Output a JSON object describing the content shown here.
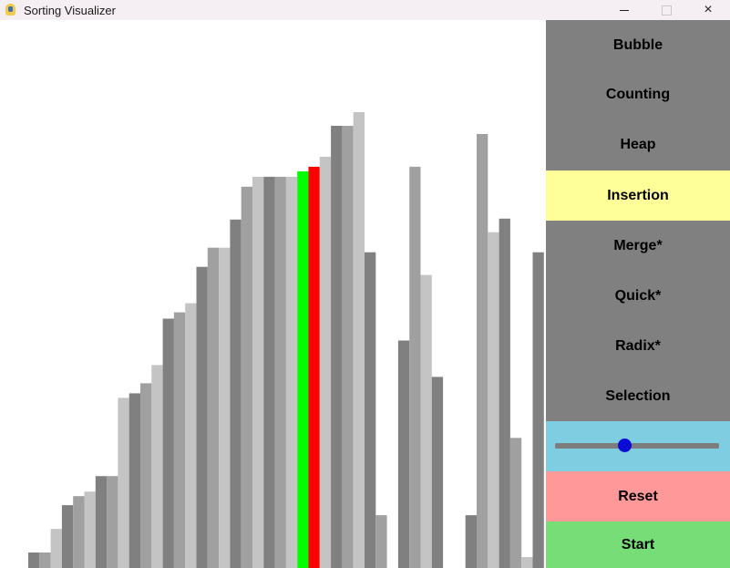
{
  "window": {
    "title": "Sorting Visualizer",
    "app_icon": "pygame-snake-icon",
    "controls": {
      "minimize": "minimize-icon",
      "maximize": "maximize-icon",
      "close": "×"
    }
  },
  "visualizer": {
    "array_values": [
      17,
      17,
      43,
      69,
      79,
      84,
      101,
      101,
      187,
      192,
      203,
      223,
      274,
      281,
      291,
      331,
      352,
      352,
      383,
      419,
      430,
      430,
      430,
      430,
      436,
      441,
      452,
      486,
      486,
      501,
      347,
      58,
      0,
      250,
      441,
      322,
      210,
      0,
      0,
      58,
      477,
      369,
      384,
      143,
      12,
      347
    ],
    "bar_colors": {
      "default_a": "#808080",
      "default_b": "#a0a0a0",
      "default_c": "#c4c4c4",
      "compare": "#00ff00",
      "swap": "#ff0000"
    },
    "compare_index": 24,
    "swap_index": 25,
    "max_value": 501
  },
  "panel": {
    "algorithms": [
      {
        "label": "Bubble",
        "active": false
      },
      {
        "label": "Counting",
        "active": false
      },
      {
        "label": "Heap",
        "active": false
      },
      {
        "label": "Insertion",
        "active": true
      },
      {
        "label": "Merge*",
        "active": false
      },
      {
        "label": "Quick*",
        "active": false
      },
      {
        "label": "Radix*",
        "active": false
      },
      {
        "label": "Selection",
        "active": false
      }
    ],
    "speed_slider": {
      "value_fraction": 0.42
    },
    "reset_label": "Reset",
    "start_label": "Start",
    "colors": {
      "button": "#808080",
      "active": "#ffff99",
      "slider_bg": "#7ecde0",
      "reset": "#ff9999",
      "start": "#77dd77"
    }
  }
}
